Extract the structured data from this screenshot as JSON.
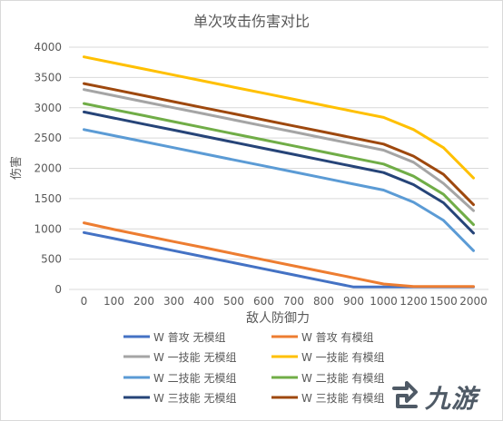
{
  "chart_data": {
    "type": "line",
    "title": "单次攻击伤害对比",
    "xlabel": "敌人防御力",
    "ylabel": "伤害",
    "categories": [
      "0",
      "100",
      "200",
      "300",
      "400",
      "500",
      "600",
      "700",
      "800",
      "900",
      "1000",
      "1200",
      "1500",
      "2000"
    ],
    "ylim": [
      0,
      4000
    ],
    "yticks": [
      0,
      500,
      1000,
      1500,
      2000,
      2500,
      3000,
      3500,
      4000
    ],
    "grid": true,
    "legend_position": "bottom",
    "series": [
      {
        "name": "W 普攻 无模组",
        "color": "#4472c4",
        "values": [
          940,
          840,
          740,
          640,
          540,
          440,
          340,
          240,
          140,
          40,
          40,
          40,
          40,
          40
        ]
      },
      {
        "name": "W 普攻 有模组",
        "color": "#ed7d31",
        "values": [
          1100,
          990,
          890,
          790,
          690,
          590,
          490,
          390,
          290,
          190,
          90,
          50,
          50,
          50
        ]
      },
      {
        "name": "W 一技能 无模组",
        "color": "#a5a5a5",
        "values": [
          3300,
          3200,
          3100,
          3000,
          2900,
          2800,
          2700,
          2600,
          2500,
          2400,
          2300,
          2100,
          1750,
          1300
        ]
      },
      {
        "name": "W 一技能 有模组",
        "color": "#ffc000",
        "values": [
          3840,
          3740,
          3640,
          3540,
          3440,
          3340,
          3240,
          3140,
          3040,
          2940,
          2840,
          2640,
          2340,
          1840
        ]
      },
      {
        "name": "W 二技能 无模组",
        "color": "#5b9bd5",
        "values": [
          2640,
          2540,
          2440,
          2340,
          2240,
          2140,
          2040,
          1940,
          1840,
          1740,
          1640,
          1440,
          1140,
          640
        ]
      },
      {
        "name": "W 二技能 有模组",
        "color": "#70ad47",
        "values": [
          3070,
          2970,
          2870,
          2770,
          2670,
          2570,
          2470,
          2370,
          2270,
          2170,
          2070,
          1870,
          1570,
          1070
        ]
      },
      {
        "name": "W 三技能 无模组",
        "color": "#264478",
        "values": [
          2930,
          2830,
          2730,
          2630,
          2530,
          2430,
          2330,
          2230,
          2130,
          2030,
          1930,
          1730,
          1430,
          930
        ]
      },
      {
        "name": "W 三技能 有模组",
        "color": "#9e480e",
        "values": [
          3400,
          3300,
          3200,
          3100,
          3000,
          2900,
          2800,
          2700,
          2600,
          2500,
          2400,
          2200,
          1900,
          1400
        ]
      }
    ]
  },
  "watermark": {
    "text": "九游"
  },
  "colors": {
    "grid": "#d9d9d9",
    "text": "#595959",
    "watermark": "#4f5a66"
  }
}
